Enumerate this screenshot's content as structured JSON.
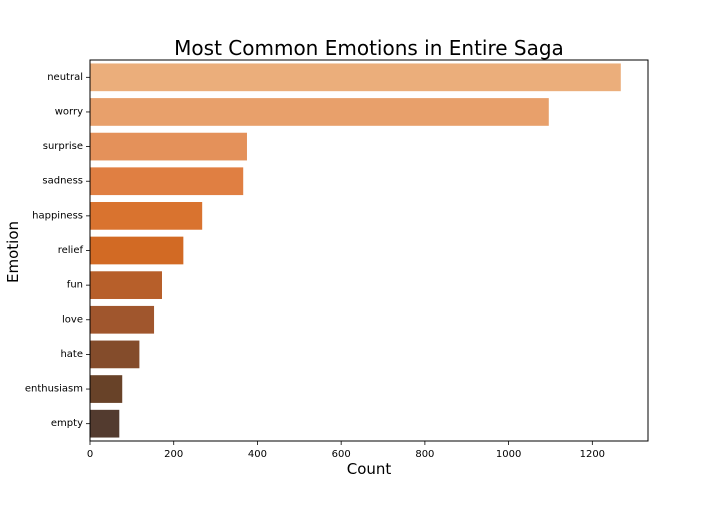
{
  "chart_data": {
    "type": "bar",
    "orientation": "horizontal",
    "title": "Most Common Emotions in Entire Saga",
    "xlabel": "Count",
    "ylabel": "Emotion",
    "categories": [
      "neutral",
      "worry",
      "surprise",
      "sadness",
      "happiness",
      "relief",
      "fun",
      "love",
      "hate",
      "enthusiasm",
      "empty"
    ],
    "values": [
      1268,
      1096,
      375,
      366,
      268,
      223,
      172,
      153,
      118,
      77,
      70
    ],
    "colors": [
      "#EBAE7B",
      "#E8A06B",
      "#E4915A",
      "#E07F42",
      "#D9732F",
      "#D26A24",
      "#B75F2A",
      "#A0562D",
      "#844C2B",
      "#684228",
      "#533B2F"
    ],
    "xlim": [
      0,
      1333
    ],
    "xticks": [
      0,
      200,
      400,
      600,
      800,
      1000,
      1200
    ],
    "grid": false,
    "legend": "none"
  }
}
